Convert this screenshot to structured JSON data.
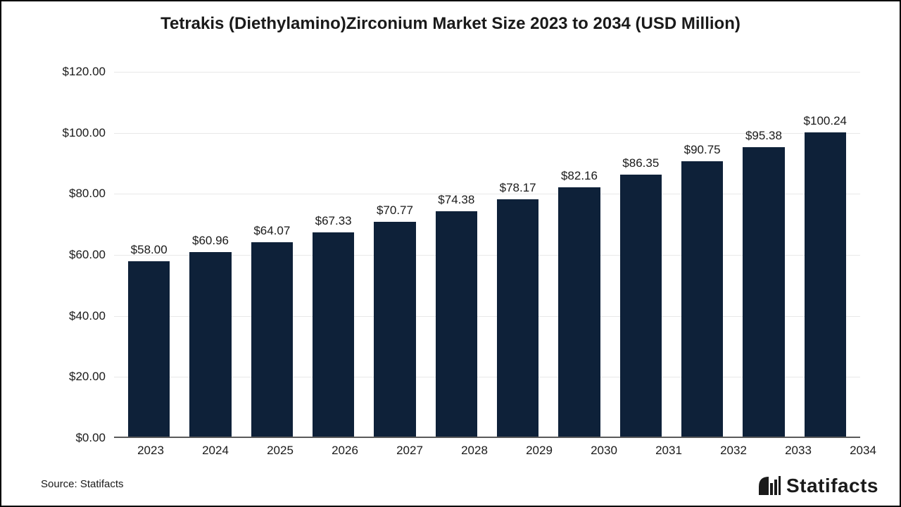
{
  "chart": {
    "type": "bar",
    "title": "Tetrakis (Diethylamino)Zirconium Market Size 2023 to 2034 (USD Million)",
    "title_fontsize": 24,
    "title_fontweight": "bold",
    "title_color": "#1a1a1a",
    "categories": [
      "2023",
      "2024",
      "2025",
      "2026",
      "2027",
      "2028",
      "2029",
      "2030",
      "2031",
      "2032",
      "2033",
      "2034"
    ],
    "values": [
      58.0,
      60.96,
      64.07,
      67.33,
      70.77,
      74.38,
      78.17,
      82.16,
      86.35,
      90.75,
      95.38,
      100.24
    ],
    "value_labels": [
      "$58.00",
      "$60.96",
      "$64.07",
      "$67.33",
      "$70.77",
      "$74.38",
      "$78.17",
      "$82.16",
      "$86.35",
      "$90.75",
      "$95.38",
      "$100.24"
    ],
    "bar_color": "#0e2139",
    "background_color": "#ffffff",
    "border_color": "#000000",
    "grid_color": "#e8e8e8",
    "baseline_color": "#5a5a5a",
    "ylim": [
      0,
      120
    ],
    "ytick_step": 20,
    "ytick_labels": [
      "$0.00",
      "$20.00",
      "$40.00",
      "$60.00",
      "$80.00",
      "$100.00",
      "$120.00"
    ],
    "axis_label_fontsize": 17,
    "value_label_fontsize": 17,
    "bar_width_ratio": 0.68
  },
  "footer": {
    "source_text": "Source: Statifacts",
    "source_fontsize": 15,
    "brand_name": "Statifacts",
    "brand_fontsize": 28,
    "brand_color": "#1a1a1a",
    "brand_icon_color": "#1a1a1a"
  }
}
